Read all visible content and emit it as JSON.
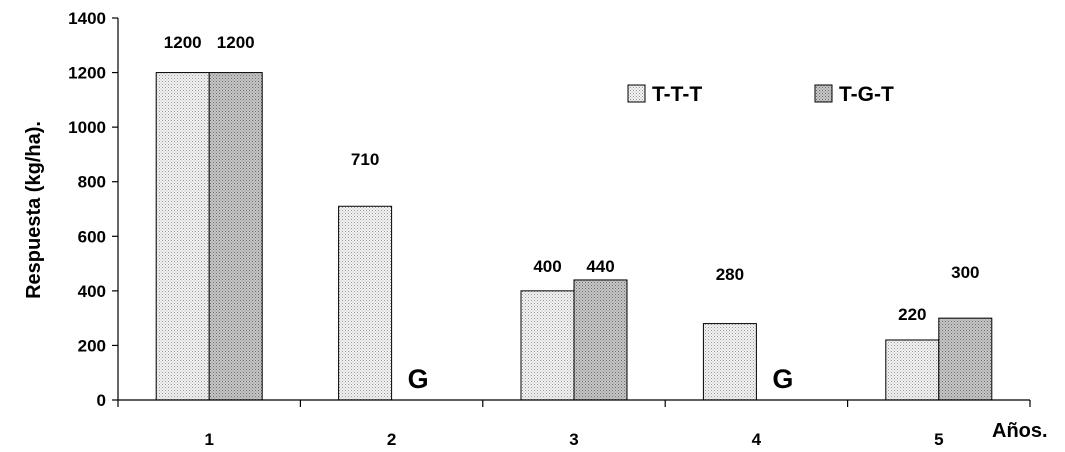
{
  "chart_data": {
    "type": "bar",
    "categories": [
      "1",
      "2",
      "3",
      "4",
      "5"
    ],
    "series": [
      {
        "name": "T-T-T",
        "values": [
          1200,
          710,
          400,
          280,
          220
        ],
        "labels": [
          "1200",
          "710",
          "400",
          "280",
          "220"
        ],
        "pattern": "dots-light",
        "color": "#e6e6e6"
      },
      {
        "name": "T-G-T",
        "values": [
          1200,
          null,
          440,
          null,
          300
        ],
        "labels": [
          "1200",
          "",
          "440",
          "",
          "300"
        ],
        "pattern": "dots-dark",
        "color": "#b8b8b8"
      }
    ],
    "annotations": [
      {
        "category": "2",
        "series": "T-G-T",
        "text": "G"
      },
      {
        "category": "4",
        "series": "T-G-T",
        "text": "G"
      }
    ],
    "title": "",
    "xlabel": "Años.",
    "ylabel": "Respuesta (kg/ha).",
    "ylim": [
      0,
      1400
    ],
    "yticks": [
      0,
      200,
      400,
      600,
      800,
      1000,
      1200,
      1400
    ],
    "grid": false,
    "legend_position": "top-right"
  }
}
